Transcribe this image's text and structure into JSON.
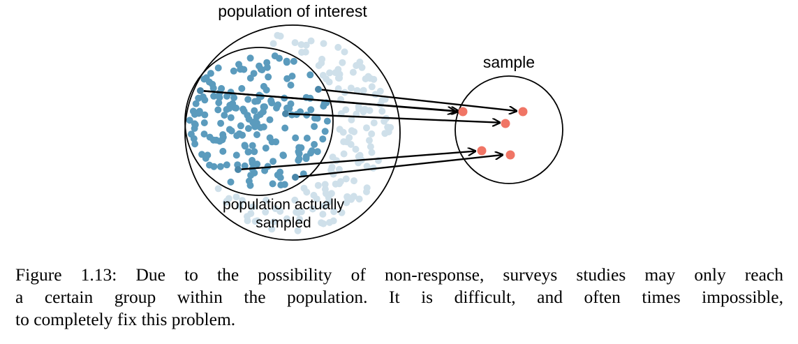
{
  "diagram": {
    "labels": {
      "population_of_interest": "population of interest",
      "population_actually_sampled_line1": "population actually",
      "population_actually_sampled_line2": "sampled",
      "sample": "sample"
    },
    "colors": {
      "outer_dots": "#cfe0ea",
      "inner_dots": "#5b9bbd",
      "sample_dots": "#f07565",
      "lines": "#000000"
    }
  },
  "caption": {
    "line1": "Figure 1.13: Due to the possibility of non-response, surveys studies may only reach",
    "line2": "a certain group within the population. It is difficult, and often times impossible,",
    "line3": "to completely fix this problem."
  }
}
